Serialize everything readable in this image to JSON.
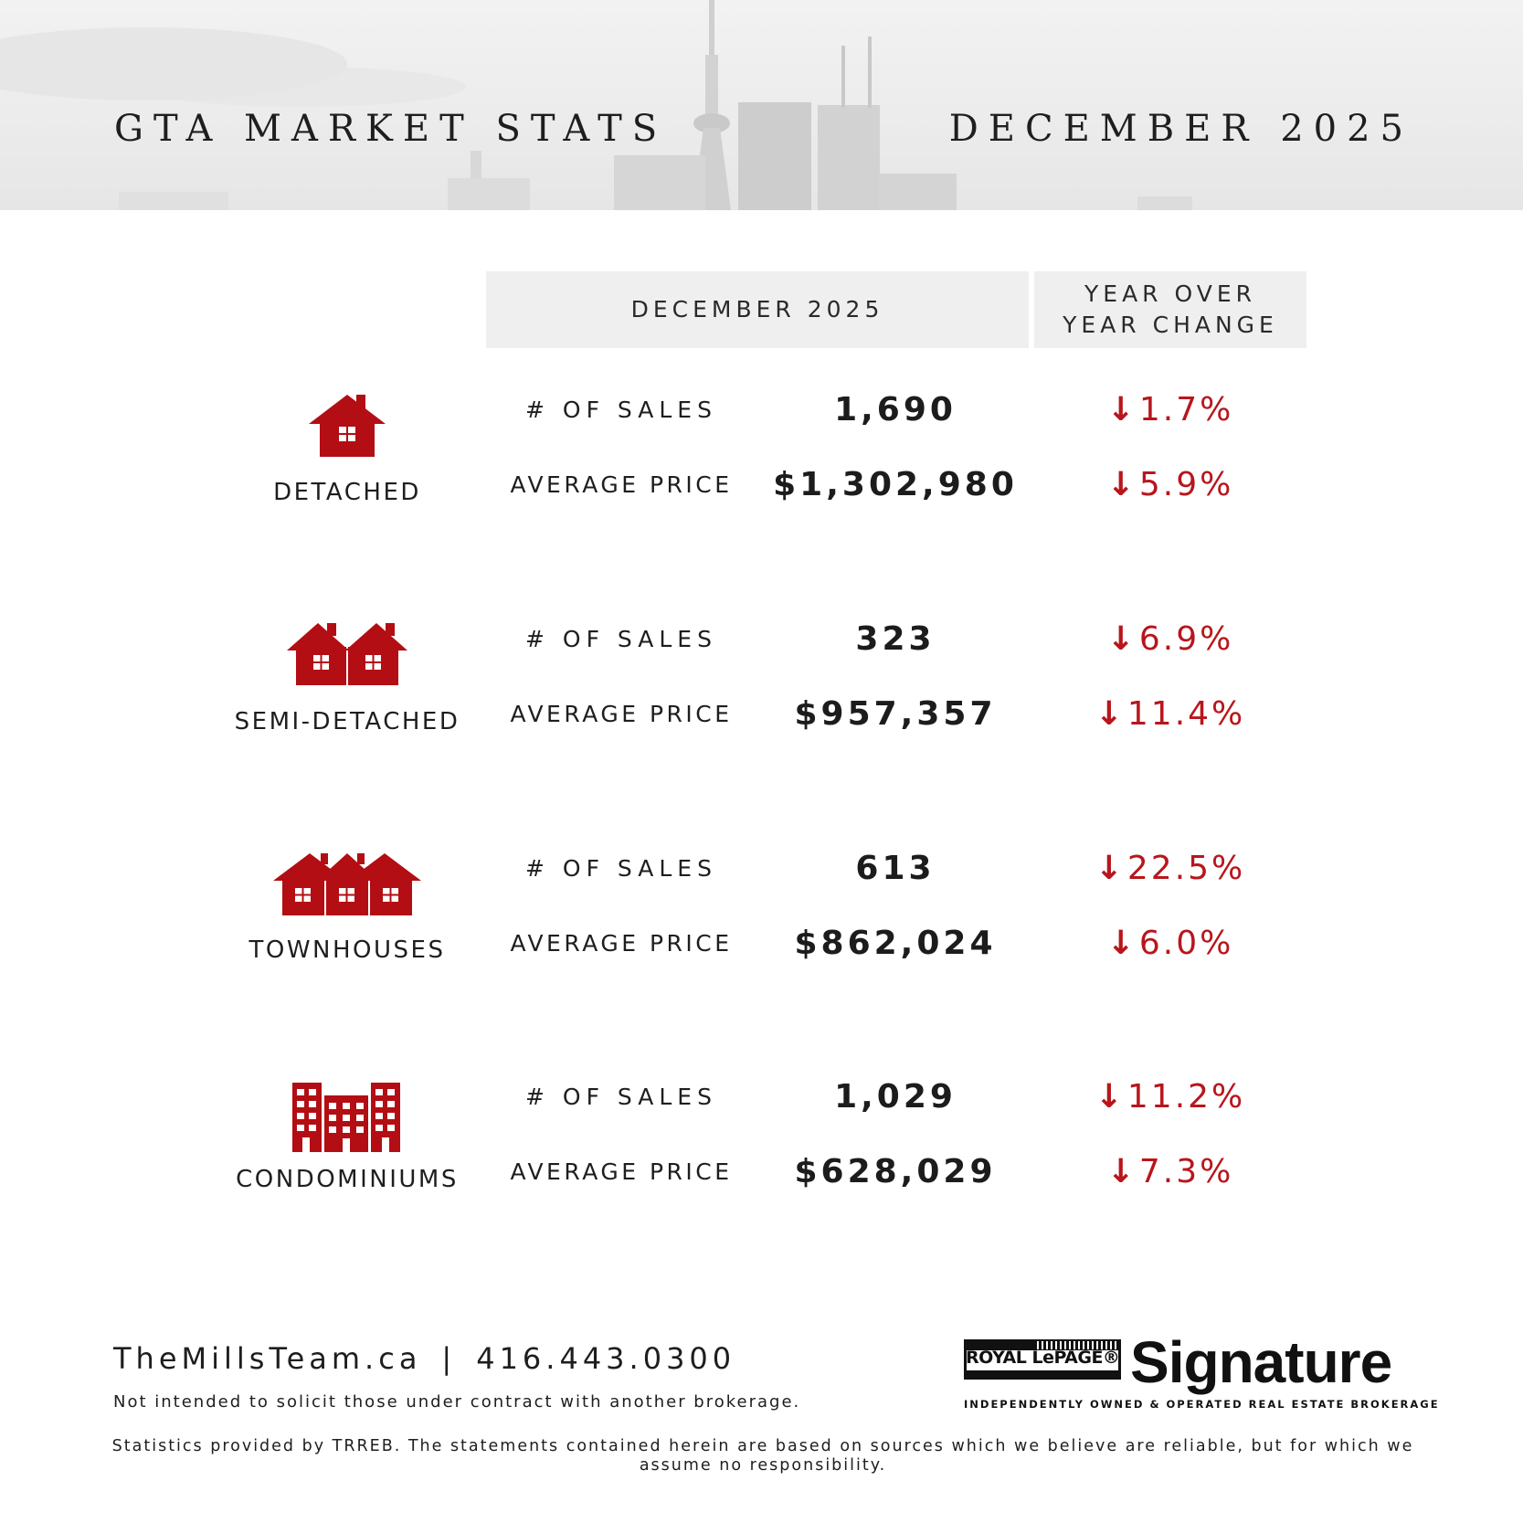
{
  "header": {
    "title_left": "GTA MARKET STATS",
    "title_right": "DECEMBER 2025"
  },
  "columns": {
    "month": "DECEMBER 2025",
    "yoy_line1": "YEAR OVER",
    "yoy_line2": "YEAR CHANGE"
  },
  "colors": {
    "accent": "#b8161c",
    "icon": "#b30e13",
    "header_band": "#ececec"
  },
  "categories": [
    {
      "label": "DETACHED",
      "icon": "house-icon",
      "sales_label": "# OF SALES",
      "sales": "1,690",
      "sales_change": "1.7%",
      "price_label": "AVERAGE PRICE",
      "price": "$1,302,980",
      "price_change": "5.9%"
    },
    {
      "label": "SEMI-DETACHED",
      "icon": "semi-detached-icon",
      "sales_label": "# OF SALES",
      "sales": "323",
      "sales_change": "6.9%",
      "price_label": "AVERAGE PRICE",
      "price": "$957,357",
      "price_change": "11.4%"
    },
    {
      "label": "TOWNHOUSES",
      "icon": "townhouses-icon",
      "sales_label": "# OF SALES",
      "sales": "613",
      "sales_change": "22.5%",
      "price_label": "AVERAGE PRICE",
      "price": "$862,024",
      "price_change": "6.0%"
    },
    {
      "label": "CONDOMINIUMS",
      "icon": "condo-building-icon",
      "sales_label": "# OF SALES",
      "sales": "1,029",
      "sales_change": "11.2%",
      "price_label": "AVERAGE PRICE",
      "price": "$628,029",
      "price_change": "7.3%"
    }
  ],
  "footer": {
    "website": "TheMillsTeam.ca",
    "separator": "|",
    "phone": "416.443.0300",
    "note": "Not intended to solicit those under contract with another brokerage.",
    "disclaimer": "Statistics provided by TRREB. The statements contained herein are based on sources which we believe are reliable, but for which we assume no responsibility."
  },
  "brand": {
    "royal_lepage": "ROYAL LePAGE®",
    "signature": "Signature",
    "tagline": "INDEPENDENTLY OWNED & OPERATED REAL ESTATE BROKERAGE"
  }
}
